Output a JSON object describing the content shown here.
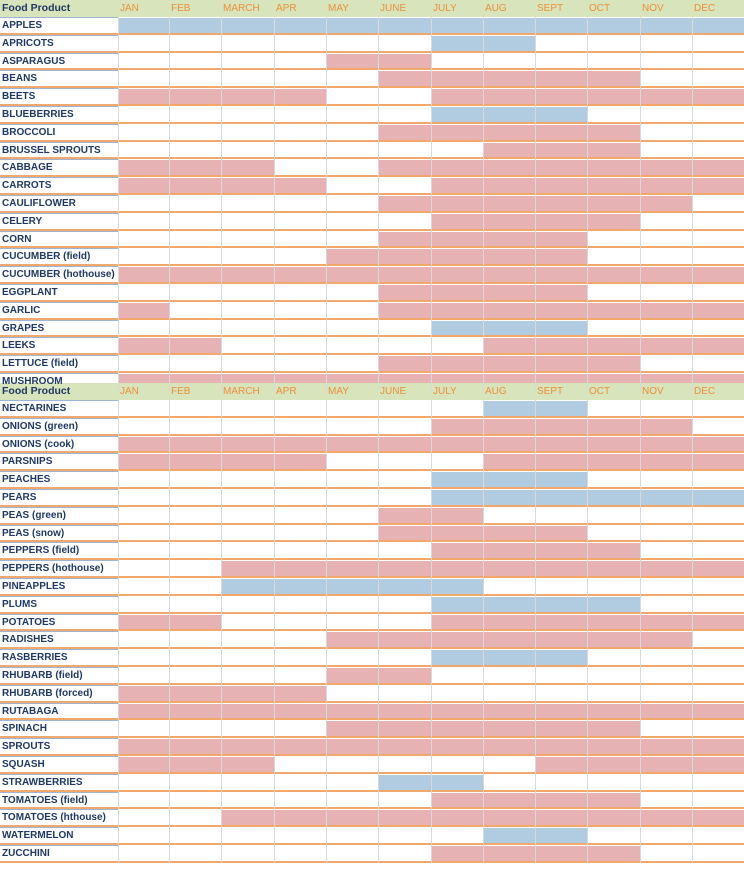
{
  "colors": {
    "header_background": "#d8e4bc",
    "header_text": "#1f3864",
    "month_text": "#ed8f3a",
    "in_season_fill": "#e6b2b4",
    "alt_season_fill": "#b1cbe0",
    "row_rule": "#f1a86a"
  },
  "tables": [
    {
      "header": {
        "label": "Food Product",
        "months": [
          "JAN",
          "FEB",
          "MARCH",
          "APR",
          "MAY",
          "JUNE",
          "JULY",
          "AUG",
          "SEPT",
          "OCT",
          "NOV",
          "DEC"
        ]
      },
      "rows": [
        {
          "name": "APPLES",
          "seasons": [
            {
              "from": 1,
              "to": 12,
              "color": "blue"
            }
          ]
        },
        {
          "name": "APRICOTS",
          "seasons": [
            {
              "from": 7,
              "to": 8,
              "color": "blue"
            }
          ]
        },
        {
          "name": "ASPARAGUS",
          "seasons": [
            {
              "from": 5,
              "to": 6,
              "color": "pink"
            }
          ]
        },
        {
          "name": "BEANS",
          "seasons": [
            {
              "from": 6,
              "to": 10,
              "color": "pink"
            }
          ]
        },
        {
          "name": "BEETS",
          "seasons": [
            {
              "from": 1,
              "to": 4,
              "color": "pink"
            },
            {
              "from": 7,
              "to": 12,
              "color": "pink"
            }
          ]
        },
        {
          "name": "BLUEBERRIES",
          "seasons": [
            {
              "from": 7,
              "to": 9,
              "color": "blue"
            }
          ]
        },
        {
          "name": "BROCCOLI",
          "seasons": [
            {
              "from": 6,
              "to": 10,
              "color": "pink"
            }
          ]
        },
        {
          "name": "BRUSSEL SPROUTS",
          "seasons": [
            {
              "from": 8,
              "to": 10,
              "color": "pink"
            }
          ]
        },
        {
          "name": "CABBAGE",
          "seasons": [
            {
              "from": 1,
              "to": 3,
              "color": "pink"
            },
            {
              "from": 6,
              "to": 12,
              "color": "pink"
            }
          ]
        },
        {
          "name": "CARROTS",
          "seasons": [
            {
              "from": 1,
              "to": 4,
              "color": "pink"
            },
            {
              "from": 7,
              "to": 12,
              "color": "pink"
            }
          ]
        },
        {
          "name": "CAULIFLOWER",
          "seasons": [
            {
              "from": 6,
              "to": 11,
              "color": "pink"
            }
          ]
        },
        {
          "name": "CELERY",
          "seasons": [
            {
              "from": 7,
              "to": 10,
              "color": "pink"
            }
          ]
        },
        {
          "name": "CORN",
          "seasons": [
            {
              "from": 6,
              "to": 9,
              "color": "pink"
            }
          ]
        },
        {
          "name": "CUCUMBER (field)",
          "seasons": [
            {
              "from": 5,
              "to": 9,
              "color": "pink"
            }
          ]
        },
        {
          "name": "CUCUMBER (hothouse)",
          "seasons": [
            {
              "from": 1,
              "to": 12,
              "color": "pink"
            }
          ]
        },
        {
          "name": "EGGPLANT",
          "seasons": [
            {
              "from": 6,
              "to": 9,
              "color": "pink"
            }
          ]
        },
        {
          "name": "GARLIC",
          "seasons": [
            {
              "from": 1,
              "to": 1,
              "color": "pink"
            },
            {
              "from": 6,
              "to": 12,
              "color": "pink"
            }
          ]
        },
        {
          "name": "GRAPES",
          "seasons": [
            {
              "from": 7,
              "to": 9,
              "color": "blue"
            }
          ]
        },
        {
          "name": "LEEKS",
          "seasons": [
            {
              "from": 1,
              "to": 2,
              "color": "pink"
            },
            {
              "from": 8,
              "to": 12,
              "color": "pink"
            }
          ]
        },
        {
          "name": "LETTUCE (field)",
          "seasons": [
            {
              "from": 6,
              "to": 10,
              "color": "pink"
            }
          ]
        },
        {
          "name": "MUSHROOM",
          "seasons": [
            {
              "from": 1,
              "to": 12,
              "color": "pink"
            }
          ]
        }
      ]
    },
    {
      "header": {
        "label": "Food Product",
        "months": [
          "JAN",
          "FEB",
          "MARCH",
          "APR",
          "MAY",
          "JUNE",
          "JULY",
          "AUG",
          "SEPT",
          "OCT",
          "NOV",
          "DEC"
        ]
      },
      "rows": [
        {
          "name": "NECTARINES",
          "seasons": [
            {
              "from": 8,
              "to": 9,
              "color": "blue"
            }
          ]
        },
        {
          "name": "ONIONS (green)",
          "seasons": [
            {
              "from": 7,
              "to": 11,
              "color": "pink"
            }
          ]
        },
        {
          "name": "ONIONS (cook)",
          "seasons": [
            {
              "from": 1,
              "to": 12,
              "color": "pink"
            }
          ]
        },
        {
          "name": "PARSNIPS",
          "seasons": [
            {
              "from": 1,
              "to": 4,
              "color": "pink"
            },
            {
              "from": 8,
              "to": 12,
              "color": "pink"
            }
          ]
        },
        {
          "name": "PEACHES",
          "seasons": [
            {
              "from": 7,
              "to": 9,
              "color": "blue"
            }
          ]
        },
        {
          "name": "PEARS",
          "seasons": [
            {
              "from": 7,
              "to": 12,
              "color": "blue"
            }
          ]
        },
        {
          "name": "PEAS (green)",
          "seasons": [
            {
              "from": 6,
              "to": 7,
              "color": "pink"
            }
          ]
        },
        {
          "name": "PEAS (snow)",
          "seasons": [
            {
              "from": 6,
              "to": 9,
              "color": "pink"
            }
          ]
        },
        {
          "name": "PEPPERS (field)",
          "seasons": [
            {
              "from": 7,
              "to": 10,
              "color": "pink"
            }
          ]
        },
        {
          "name": "PEPPERS (hothouse)",
          "seasons": [
            {
              "from": 3,
              "to": 12,
              "color": "pink"
            }
          ]
        },
        {
          "name": "PINEAPPLES",
          "seasons": [
            {
              "from": 3,
              "to": 7,
              "color": "blue"
            }
          ]
        },
        {
          "name": "PLUMS",
          "seasons": [
            {
              "from": 7,
              "to": 10,
              "color": "blue"
            }
          ]
        },
        {
          "name": "POTATOES",
          "seasons": [
            {
              "from": 1,
              "to": 2,
              "color": "pink"
            },
            {
              "from": 7,
              "to": 12,
              "color": "pink"
            }
          ]
        },
        {
          "name": "RADISHES",
          "seasons": [
            {
              "from": 5,
              "to": 11,
              "color": "pink"
            }
          ]
        },
        {
          "name": "RASBERRIES",
          "seasons": [
            {
              "from": 7,
              "to": 9,
              "color": "blue"
            }
          ]
        },
        {
          "name": "RHUBARB (field)",
          "seasons": [
            {
              "from": 5,
              "to": 6,
              "color": "pink"
            }
          ]
        },
        {
          "name": "RHUBARB (forced)",
          "seasons": [
            {
              "from": 1,
              "to": 4,
              "color": "pink"
            }
          ]
        },
        {
          "name": "RUTABAGA",
          "seasons": [
            {
              "from": 1,
              "to": 12,
              "color": "pink"
            }
          ]
        },
        {
          "name": "SPINACH",
          "seasons": [
            {
              "from": 5,
              "to": 10,
              "color": "pink"
            }
          ]
        },
        {
          "name": "SPROUTS",
          "seasons": [
            {
              "from": 1,
              "to": 12,
              "color": "pink"
            }
          ]
        },
        {
          "name": "SQUASH",
          "seasons": [
            {
              "from": 1,
              "to": 3,
              "color": "pink"
            },
            {
              "from": 9,
              "to": 12,
              "color": "pink"
            }
          ]
        },
        {
          "name": "STRAWBERRIES",
          "seasons": [
            {
              "from": 6,
              "to": 7,
              "color": "blue"
            }
          ]
        },
        {
          "name": "TOMATOES (field)",
          "seasons": [
            {
              "from": 7,
              "to": 10,
              "color": "pink"
            }
          ]
        },
        {
          "name": "TOMATOES (hthouse)",
          "seasons": [
            {
              "from": 3,
              "to": 12,
              "color": "pink"
            }
          ]
        },
        {
          "name": "WATERMELON",
          "seasons": [
            {
              "from": 8,
              "to": 9,
              "color": "blue"
            }
          ]
        },
        {
          "name": "ZUCCHINI",
          "seasons": [
            {
              "from": 7,
              "to": 10,
              "color": "pink"
            }
          ]
        }
      ]
    }
  ]
}
